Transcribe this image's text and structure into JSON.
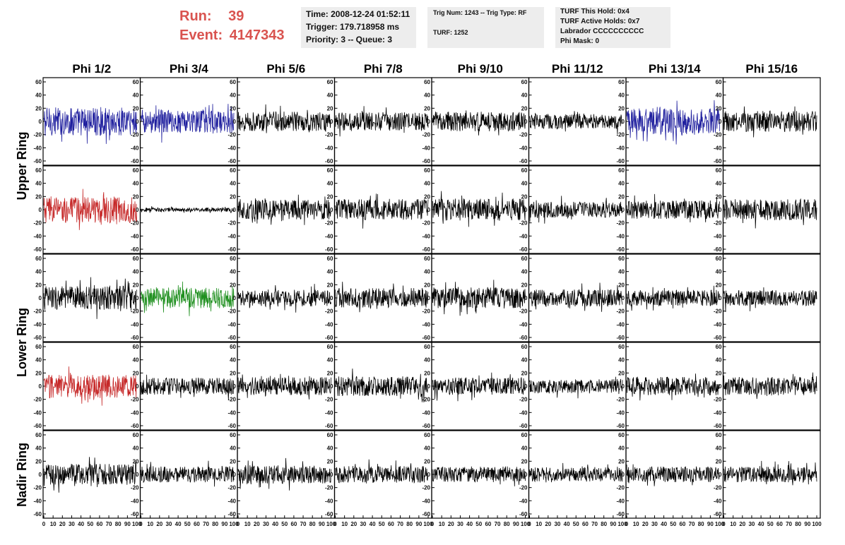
{
  "header": {
    "run_label": "Run:",
    "run_value": "39",
    "event_label": "Event:",
    "event_value": "4147343",
    "box1": {
      "time": "Time: 2008-12-24 01:52:11",
      "trigger": "Trigger: 179.718958 ms",
      "priority": "Priority: 3 -- Queue: 3"
    },
    "box2": {
      "trig": "Trig Num: 1243 -- Trig Type: RF",
      "turf": "TURF: 1252"
    },
    "box3": {
      "hold": "TURF This Hold: 0x4",
      "active": "TURF Active Holds: 0x7",
      "labrador": "Labrador CCCCCCCCCC",
      "phimask": "Phi Mask: 0"
    },
    "colors": {
      "header_red": "#d9534f",
      "box_bg": "#ededed"
    }
  },
  "chart_data": {
    "type": "line",
    "columns": [
      "Phi 1/2",
      "Phi 3/4",
      "Phi 5/6",
      "Phi 7/8",
      "Phi 9/10",
      "Phi 11/12",
      "Phi 13/14",
      "Phi 15/16"
    ],
    "row_groups": [
      {
        "label": "Upper Ring",
        "rows": [
          0,
          1
        ]
      },
      {
        "label": "Lower Ring",
        "rows": [
          2,
          3
        ]
      },
      {
        "label": "Nadir Ring",
        "rows": [
          4
        ]
      }
    ],
    "xlim": [
      0,
      100
    ],
    "ylim": [
      -60,
      60
    ],
    "xticks": [
      0,
      10,
      20,
      30,
      40,
      50,
      60,
      70,
      80,
      90,
      100
    ],
    "yticks": [
      -60,
      -40,
      -20,
      0,
      20,
      40,
      60
    ],
    "series_colors": {
      "k": "#000000",
      "b": "#1f1f9e",
      "r": "#c62828",
      "g": "#1e8f1e"
    },
    "panels": [
      [
        "b",
        "b",
        "k",
        "k",
        "k",
        "k",
        "b",
        "k"
      ],
      [
        "r",
        "k",
        "k",
        "k",
        "k",
        "k",
        "k",
        "k"
      ],
      [
        "k",
        "g",
        "k",
        "k",
        "k",
        "k",
        "k",
        "k"
      ],
      [
        "r",
        "k",
        "k",
        "k",
        "k",
        "k",
        "k",
        "k"
      ],
      [
        "k",
        "k",
        "k",
        "k",
        "k",
        "k",
        "k",
        "k"
      ]
    ],
    "amplitudes": [
      [
        22,
        18,
        15,
        14,
        15,
        12,
        20,
        16
      ],
      [
        20,
        3,
        15,
        16,
        17,
        12,
        14,
        16
      ],
      [
        18,
        16,
        13,
        15,
        16,
        13,
        12,
        12
      ],
      [
        18,
        13,
        14,
        15,
        13,
        11,
        14,
        14
      ],
      [
        16,
        12,
        14,
        13,
        12,
        11,
        12,
        12
      ]
    ],
    "waveform_spec": "noisy oscillating traces, ~260 samples per panel spanning x 0-100"
  }
}
